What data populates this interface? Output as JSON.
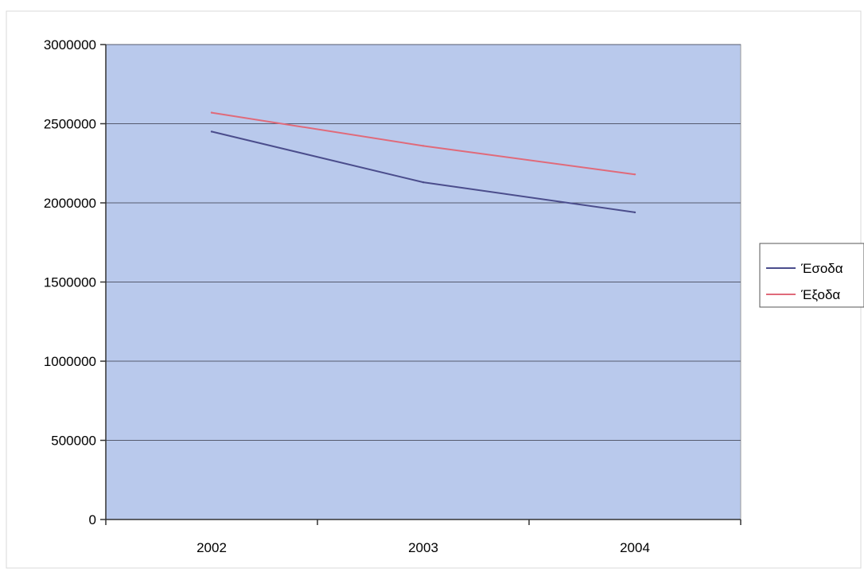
{
  "chart_data": {
    "type": "line",
    "title": "",
    "xlabel": "",
    "ylabel": "",
    "categories": [
      "2002",
      "2003",
      "2004"
    ],
    "ylim": [
      0,
      3000000
    ],
    "yticks": [
      "0",
      "500000",
      "1000000",
      "1500000",
      "2000000",
      "2500000",
      "3000000"
    ],
    "grid": true,
    "legend_position": "right",
    "plot_background": "#b9c9ec",
    "series": [
      {
        "name": "Έσοδα",
        "values": [
          2450000,
          2130000,
          1940000
        ],
        "color": "#4b4d8c"
      },
      {
        "name": "Έξοδα",
        "values": [
          2570000,
          2360000,
          2180000
        ],
        "color": "#e06a7a"
      }
    ]
  }
}
